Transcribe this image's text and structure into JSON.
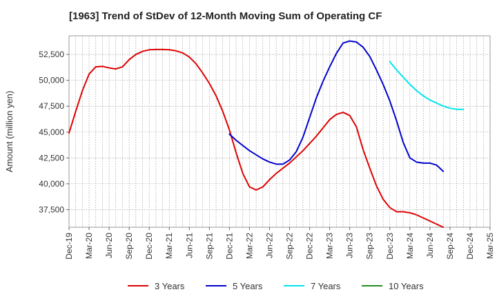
{
  "chart_data": {
    "type": "line",
    "title": "[1963]  Trend of StDev of 12-Month Moving Sum of Operating CF",
    "xlabel": "",
    "ylabel": "Amount (million yen)",
    "x_tick_labels": [
      "Dec-19",
      "Mar-20",
      "Jun-20",
      "Sep-20",
      "Dec-20",
      "Mar-21",
      "Jun-21",
      "Sep-21",
      "Dec-21",
      "Mar-22",
      "Jun-22",
      "Sep-22",
      "Dec-22",
      "Mar-23",
      "Jun-23",
      "Sep-23",
      "Dec-23",
      "Mar-24",
      "Jun-24",
      "Sep-24",
      "Dec-24",
      "Mar-25"
    ],
    "y_ticks": [
      37500,
      40000,
      42500,
      45000,
      47500,
      50000,
      52500
    ],
    "y_tick_labels": [
      "37,500",
      "40,000",
      "42,500",
      "45,000",
      "47,500",
      "50,000",
      "52,500"
    ],
    "ylim": [
      35800,
      54300
    ],
    "grid": true,
    "legend_position": "bottom",
    "series": [
      {
        "name": "3 Years",
        "color": "#dd0000",
        "start_month": "Dec-19",
        "values": [
          44900,
          47000,
          49000,
          50600,
          51300,
          51350,
          51200,
          51100,
          51300,
          52000,
          52500,
          52800,
          52950,
          52980,
          52980,
          52950,
          52850,
          52650,
          52250,
          51600,
          50700,
          49700,
          48500,
          47000,
          45200,
          43000,
          41000,
          39700,
          39400,
          39700,
          40400,
          41000,
          41500,
          42000,
          42600,
          43200,
          43900,
          44600,
          45400,
          46200,
          46700,
          46900,
          46600,
          45500,
          43300,
          41500,
          39800,
          38500,
          37700,
          37300,
          37300,
          37200,
          37000,
          36700,
          36400,
          36100,
          35800
        ]
      },
      {
        "name": "5 Years",
        "color": "#0000cc",
        "start_month": "Dec-21",
        "values": [
          44800,
          44200,
          43700,
          43200,
          42800,
          42400,
          42100,
          41900,
          41900,
          42300,
          43100,
          44500,
          46400,
          48300,
          49900,
          51300,
          52600,
          53600,
          53800,
          53700,
          53200,
          52300,
          51000,
          49600,
          48000,
          46100,
          44000,
          42500,
          42100,
          42000,
          42000,
          41800,
          41200
        ]
      },
      {
        "name": "7 Years",
        "color": "#00e5ee",
        "start_month": "Dec-23",
        "values": [
          51800,
          51000,
          50300,
          49600,
          49000,
          48500,
          48100,
          47800,
          47500,
          47300,
          47200,
          47200
        ]
      },
      {
        "name": "10 Years",
        "color": "#228b22",
        "start_month": "",
        "values": []
      }
    ]
  }
}
